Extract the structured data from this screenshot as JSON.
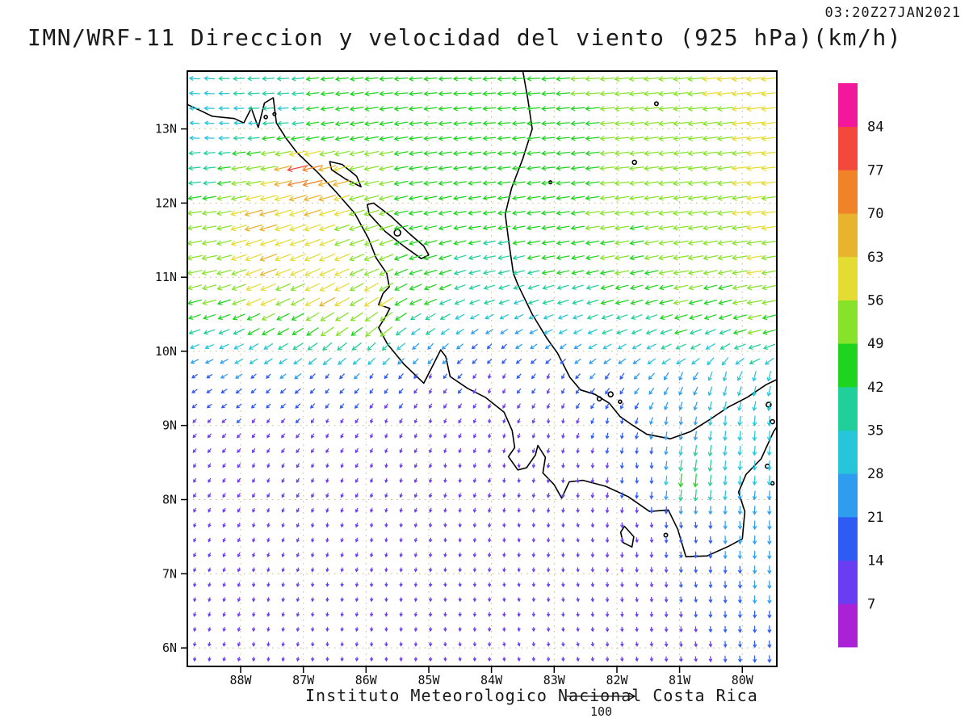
{
  "chart_data": {
    "type": "vector_field_map",
    "title": "IMN/WRF-11 Direccion y velocidad del viento (925 hPa)(km/h)",
    "timestamp": "03:20Z27JAN2021",
    "footer": "Instituto Meteorologico Nacional Costa Rica",
    "reference_vector_label": "100",
    "model": "IMN/WRF-11",
    "variable": "Direccion y velocidad del viento",
    "level": "925 hPa",
    "units": "km/h",
    "map": {
      "lon_min": -88.85,
      "lon_max": -79.45,
      "lat_min": 5.75,
      "lat_max": 13.78
    },
    "axes": {
      "lat_ticks": [
        {
          "label": "13N",
          "value": 13
        },
        {
          "label": "12N",
          "value": 12
        },
        {
          "label": "11N",
          "value": 11
        },
        {
          "label": "10N",
          "value": 10
        },
        {
          "label": "9N",
          "value": 9
        },
        {
          "label": "8N",
          "value": 8
        },
        {
          "label": "7N",
          "value": 7
        },
        {
          "label": "6N",
          "value": 6
        }
      ],
      "lon_ticks": [
        {
          "label": "88W",
          "value": -88
        },
        {
          "label": "87W",
          "value": -87
        },
        {
          "label": "86W",
          "value": -86
        },
        {
          "label": "85W",
          "value": -85
        },
        {
          "label": "84W",
          "value": -84
        },
        {
          "label": "83W",
          "value": -83
        },
        {
          "label": "82W",
          "value": -82
        },
        {
          "label": "81W",
          "value": -81
        },
        {
          "label": "80W",
          "value": -80
        }
      ]
    },
    "colorbar": {
      "levels": [
        7,
        14,
        21,
        28,
        35,
        42,
        49,
        56,
        63,
        70,
        77,
        84
      ],
      "colors": [
        "#a922d6",
        "#6b3df2",
        "#2f5bf5",
        "#2e9df0",
        "#26c5da",
        "#20cf9a",
        "#1fd41f",
        "#86e32a",
        "#e5dc33",
        "#e8b42e",
        "#f08228",
        "#f4483d",
        "#f2179b"
      ]
    },
    "style": {
      "background": "#ffffff",
      "grid_color": "#c9b87a",
      "coast_color": "#000000",
      "frame_color": "#000000"
    },
    "grid": {
      "cols": 40,
      "rows": 40,
      "arrow_scale": 0.3,
      "arrow_min": 4
    },
    "wind_samples": [
      [
        -88.6,
        13.6,
        34,
        176
      ],
      [
        -87.5,
        13.6,
        41,
        182
      ],
      [
        -86.5,
        13.6,
        45,
        186
      ],
      [
        -85.5,
        13.6,
        46,
        184
      ],
      [
        -84.5,
        13.6,
        44,
        183
      ],
      [
        -83.5,
        13.6,
        46,
        183
      ],
      [
        -82.5,
        13.6,
        50,
        184
      ],
      [
        -81.5,
        13.6,
        54,
        185
      ],
      [
        -80.5,
        13.6,
        57,
        186
      ],
      [
        -79.6,
        13.6,
        58,
        186
      ],
      [
        -88.6,
        13.0,
        29,
        176
      ],
      [
        -88.0,
        13.1,
        31,
        178
      ],
      [
        -87.3,
        13.2,
        34,
        183
      ],
      [
        -86.7,
        13.0,
        44,
        190
      ],
      [
        -86.0,
        13.0,
        48,
        190
      ],
      [
        -85.0,
        13.0,
        45,
        186
      ],
      [
        -84.0,
        13.0,
        43,
        184
      ],
      [
        -83.0,
        13.0,
        46,
        184
      ],
      [
        -82.0,
        13.0,
        50,
        185
      ],
      [
        -81.0,
        13.0,
        54,
        186
      ],
      [
        -79.8,
        13.0,
        58,
        186
      ],
      [
        -88.6,
        12.4,
        40,
        186
      ],
      [
        -87.8,
        12.4,
        55,
        189
      ],
      [
        -87.0,
        12.4,
        82,
        193
      ],
      [
        -86.5,
        12.3,
        68,
        195
      ],
      [
        -86.0,
        12.4,
        52,
        192
      ],
      [
        -85.0,
        12.4,
        46,
        188
      ],
      [
        -84.0,
        12.4,
        44,
        186
      ],
      [
        -83.0,
        12.4,
        47,
        186
      ],
      [
        -82.0,
        12.4,
        52,
        186
      ],
      [
        -81.0,
        12.4,
        56,
        187
      ],
      [
        -79.8,
        12.4,
        58,
        186
      ],
      [
        -88.6,
        11.8,
        50,
        189
      ],
      [
        -87.7,
        11.8,
        68,
        196
      ],
      [
        -86.9,
        11.8,
        64,
        198
      ],
      [
        -86.1,
        11.8,
        56,
        197
      ],
      [
        -85.2,
        11.8,
        48,
        191
      ],
      [
        -84.2,
        11.8,
        44,
        188
      ],
      [
        -83.2,
        11.8,
        47,
        188
      ],
      [
        -82.2,
        11.8,
        52,
        188
      ],
      [
        -81.0,
        11.8,
        56,
        188
      ],
      [
        -79.8,
        11.8,
        58,
        187
      ],
      [
        -88.6,
        11.2,
        55,
        191
      ],
      [
        -87.6,
        11.2,
        66,
        200
      ],
      [
        -86.7,
        11.2,
        62,
        203
      ],
      [
        -85.9,
        11.2,
        56,
        202
      ],
      [
        -85.0,
        11.2,
        47,
        195
      ],
      [
        -84.0,
        11.2,
        42,
        191
      ],
      [
        -83.0,
        11.2,
        46,
        190
      ],
      [
        -82.0,
        11.2,
        52,
        190
      ],
      [
        -81.0,
        11.2,
        56,
        189
      ],
      [
        -79.8,
        11.2,
        58,
        188
      ],
      [
        -88.6,
        10.7,
        50,
        195
      ],
      [
        -87.6,
        10.7,
        60,
        203
      ],
      [
        -86.6,
        10.7,
        64,
        208
      ],
      [
        -85.8,
        10.7,
        62,
        212
      ],
      [
        -85.0,
        10.7,
        46,
        202
      ],
      [
        -84.0,
        10.7,
        37,
        198
      ],
      [
        -83.0,
        10.7,
        40,
        196
      ],
      [
        -82.0,
        10.7,
        47,
        194
      ],
      [
        -81.0,
        10.7,
        52,
        192
      ],
      [
        -79.8,
        10.7,
        55,
        190
      ],
      [
        -88.6,
        10.3,
        40,
        199
      ],
      [
        -87.6,
        10.3,
        49,
        208
      ],
      [
        -86.6,
        10.3,
        56,
        214
      ],
      [
        -85.8,
        10.3,
        58,
        219
      ],
      [
        -85.0,
        10.3,
        36,
        216
      ],
      [
        -84.0,
        10.3,
        26,
        212
      ],
      [
        -83.0,
        10.3,
        30,
        206
      ],
      [
        -82.0,
        10.3,
        38,
        200
      ],
      [
        -81.0,
        10.3,
        45,
        196
      ],
      [
        -79.8,
        10.3,
        50,
        193
      ],
      [
        -88.6,
        10.0,
        27,
        205
      ],
      [
        -87.6,
        10.0,
        32,
        213
      ],
      [
        -86.6,
        10.0,
        38,
        221
      ],
      [
        -85.8,
        10.0,
        34,
        226
      ],
      [
        -85.0,
        10.0,
        22,
        229
      ],
      [
        -84.0,
        10.0,
        16,
        231
      ],
      [
        -83.0,
        10.0,
        20,
        221
      ],
      [
        -82.0,
        10.0,
        28,
        212
      ],
      [
        -81.0,
        10.0,
        36,
        205
      ],
      [
        -79.8,
        10.0,
        42,
        198
      ],
      [
        -88.6,
        9.6,
        16,
        216
      ],
      [
        -87.6,
        9.6,
        14,
        226
      ],
      [
        -86.6,
        9.6,
        13,
        236
      ],
      [
        -85.8,
        9.6,
        12,
        246
      ],
      [
        -85.0,
        9.6,
        10,
        256
      ],
      [
        -84.0,
        9.6,
        10,
        262
      ],
      [
        -83.0,
        9.6,
        13,
        256
      ],
      [
        -82.0,
        9.6,
        20,
        242
      ],
      [
        -81.0,
        9.6,
        27,
        252
      ],
      [
        -80.3,
        9.6,
        32,
        258
      ],
      [
        -79.7,
        9.6,
        35,
        262
      ],
      [
        -88.6,
        9.0,
        11,
        230
      ],
      [
        -87.6,
        9.0,
        10,
        240
      ],
      [
        -86.6,
        9.0,
        9,
        250
      ],
      [
        -85.8,
        9.0,
        9,
        258
      ],
      [
        -85.0,
        9.0,
        8,
        264
      ],
      [
        -84.0,
        9.0,
        8,
        270
      ],
      [
        -83.0,
        9.0,
        10,
        272
      ],
      [
        -82.0,
        9.0,
        15,
        266
      ],
      [
        -81.0,
        9.0,
        24,
        268
      ],
      [
        -80.3,
        9.0,
        30,
        268
      ],
      [
        -79.7,
        9.0,
        33,
        268
      ],
      [
        -88.6,
        8.4,
        9,
        245
      ],
      [
        -87.6,
        8.4,
        9,
        252
      ],
      [
        -86.6,
        8.4,
        8,
        258
      ],
      [
        -85.6,
        8.4,
        8,
        265
      ],
      [
        -84.6,
        8.4,
        8,
        272
      ],
      [
        -83.6,
        8.4,
        8,
        278
      ],
      [
        -82.6,
        8.4,
        10,
        280
      ],
      [
        -81.6,
        8.4,
        14,
        278
      ],
      [
        -80.85,
        8.25,
        48,
        266
      ],
      [
        -80.6,
        8.5,
        40,
        263
      ],
      [
        -80.1,
        8.4,
        28,
        269
      ],
      [
        -79.6,
        8.4,
        31,
        268
      ],
      [
        -88.6,
        7.6,
        8,
        252
      ],
      [
        -87.6,
        7.6,
        8,
        258
      ],
      [
        -86.6,
        7.6,
        8,
        264
      ],
      [
        -85.6,
        7.6,
        7,
        270
      ],
      [
        -84.6,
        7.6,
        7,
        276
      ],
      [
        -83.6,
        7.6,
        7,
        282
      ],
      [
        -82.6,
        7.6,
        8,
        285
      ],
      [
        -81.6,
        7.6,
        11,
        282
      ],
      [
        -80.8,
        7.6,
        16,
        278
      ],
      [
        -80.1,
        7.6,
        24,
        272
      ],
      [
        -79.6,
        7.6,
        28,
        270
      ],
      [
        -88.6,
        6.8,
        8,
        258
      ],
      [
        -87.6,
        6.8,
        8,
        263
      ],
      [
        -86.6,
        6.8,
        7,
        268
      ],
      [
        -85.6,
        6.8,
        7,
        273
      ],
      [
        -84.6,
        6.8,
        7,
        278
      ],
      [
        -83.6,
        6.8,
        7,
        283
      ],
      [
        -82.6,
        6.8,
        8,
        285
      ],
      [
        -81.6,
        6.8,
        10,
        282
      ],
      [
        -80.8,
        6.8,
        14,
        278
      ],
      [
        -80.1,
        6.8,
        20,
        274
      ],
      [
        -79.6,
        6.8,
        24,
        271
      ],
      [
        -88.6,
        6.0,
        8,
        262
      ],
      [
        -87.6,
        6.0,
        8,
        266
      ],
      [
        -86.6,
        6.0,
        7,
        270
      ],
      [
        -85.6,
        6.0,
        7,
        274
      ],
      [
        -84.6,
        6.0,
        7,
        279
      ],
      [
        -83.6,
        6.0,
        7,
        283
      ],
      [
        -82.6,
        6.0,
        8,
        284
      ],
      [
        -81.6,
        6.0,
        9,
        281
      ],
      [
        -80.8,
        6.0,
        12,
        278
      ],
      [
        -80.1,
        6.0,
        16,
        275
      ],
      [
        -79.6,
        6.0,
        20,
        272
      ]
    ],
    "coastlines": {
      "pacific": [
        [
          -88.85,
          13.33
        ],
        [
          -88.45,
          13.17
        ],
        [
          -88.1,
          13.14
        ],
        [
          -87.95,
          13.08
        ],
        [
          -87.83,
          13.28
        ],
        [
          -87.72,
          13.02
        ],
        [
          -87.62,
          13.35
        ],
        [
          -87.48,
          13.42
        ],
        [
          -87.43,
          13.08
        ],
        [
          -87.28,
          12.88
        ],
        [
          -87.1,
          12.68
        ],
        [
          -86.78,
          12.42
        ],
        [
          -86.48,
          12.15
        ],
        [
          -86.18,
          11.86
        ],
        [
          -85.96,
          11.52
        ],
        [
          -85.84,
          11.26
        ],
        [
          -85.67,
          11.05
        ],
        [
          -85.63,
          10.87
        ],
        [
          -85.73,
          10.78
        ],
        [
          -85.8,
          10.63
        ],
        [
          -85.62,
          10.58
        ],
        [
          -85.7,
          10.45
        ],
        [
          -85.8,
          10.32
        ],
        [
          -85.66,
          10.1
        ],
        [
          -85.4,
          9.83
        ],
        [
          -85.08,
          9.57
        ],
        [
          -84.94,
          9.8
        ],
        [
          -84.81,
          10.02
        ],
        [
          -84.73,
          9.93
        ],
        [
          -84.66,
          9.66
        ],
        [
          -84.38,
          9.5
        ],
        [
          -84.1,
          9.38
        ],
        [
          -83.8,
          9.18
        ],
        [
          -83.67,
          8.93
        ],
        [
          -83.63,
          8.7
        ],
        [
          -83.73,
          8.58
        ],
        [
          -83.58,
          8.4
        ],
        [
          -83.44,
          8.43
        ],
        [
          -83.3,
          8.6
        ],
        [
          -83.26,
          8.73
        ],
        [
          -83.14,
          8.57
        ],
        [
          -83.18,
          8.36
        ],
        [
          -83.0,
          8.2
        ],
        [
          -82.88,
          8.02
        ],
        [
          -82.76,
          8.24
        ],
        [
          -82.54,
          8.26
        ],
        [
          -82.18,
          8.18
        ],
        [
          -81.82,
          8.04
        ],
        [
          -81.48,
          7.84
        ],
        [
          -81.18,
          7.86
        ],
        [
          -81.03,
          7.6
        ],
        [
          -80.9,
          7.23
        ],
        [
          -80.56,
          7.24
        ],
        [
          -80.22,
          7.37
        ],
        [
          -80.0,
          7.47
        ],
        [
          -79.96,
          7.84
        ],
        [
          -80.06,
          8.1
        ],
        [
          -79.94,
          8.34
        ],
        [
          -79.7,
          8.55
        ],
        [
          -79.5,
          8.92
        ],
        [
          -79.45,
          8.98
        ]
      ],
      "caribbean": [
        [
          -83.5,
          13.78
        ],
        [
          -83.42,
          13.4
        ],
        [
          -83.35,
          13.0
        ],
        [
          -83.5,
          12.6
        ],
        [
          -83.68,
          12.2
        ],
        [
          -83.78,
          11.85
        ],
        [
          -83.72,
          11.45
        ],
        [
          -83.65,
          11.05
        ],
        [
          -83.58,
          10.9
        ],
        [
          -83.35,
          10.5
        ],
        [
          -83.12,
          10.18
        ],
        [
          -82.95,
          9.98
        ],
        [
          -82.75,
          9.65
        ],
        [
          -82.58,
          9.48
        ],
        [
          -82.35,
          9.42
        ],
        [
          -82.12,
          9.3
        ],
        [
          -81.95,
          9.12
        ],
        [
          -81.78,
          9.02
        ],
        [
          -81.52,
          8.88
        ],
        [
          -81.15,
          8.82
        ],
        [
          -80.82,
          8.92
        ],
        [
          -80.52,
          9.08
        ],
        [
          -80.22,
          9.25
        ],
        [
          -79.92,
          9.38
        ],
        [
          -79.62,
          9.55
        ],
        [
          -79.45,
          9.62
        ]
      ],
      "lake_nicaragua": [
        [
          -85.88,
          12.0
        ],
        [
          -85.6,
          11.82
        ],
        [
          -85.3,
          11.58
        ],
        [
          -85.08,
          11.42
        ],
        [
          -85.0,
          11.3
        ],
        [
          -85.12,
          11.25
        ],
        [
          -85.4,
          11.42
        ],
        [
          -85.7,
          11.62
        ],
        [
          -85.95,
          11.85
        ],
        [
          -85.98,
          11.98
        ]
      ],
      "lake_managua": [
        [
          -86.55,
          12.45
        ],
        [
          -86.32,
          12.32
        ],
        [
          -86.08,
          12.22
        ],
        [
          -86.15,
          12.36
        ],
        [
          -86.38,
          12.52
        ],
        [
          -86.58,
          12.56
        ]
      ],
      "coiba": [
        [
          -81.88,
          7.64
        ],
        [
          -81.73,
          7.5
        ],
        [
          -81.76,
          7.36
        ],
        [
          -81.9,
          7.42
        ],
        [
          -81.94,
          7.56
        ]
      ],
      "islands": [
        [
          -85.5,
          11.6,
          4
        ],
        [
          -82.1,
          9.42,
          3
        ],
        [
          -82.28,
          9.36,
          2.5
        ],
        [
          -81.95,
          9.32,
          2
        ],
        [
          -79.58,
          9.28,
          3
        ],
        [
          -79.52,
          9.05,
          2.5
        ],
        [
          -79.6,
          8.45,
          2.5
        ],
        [
          -79.52,
          8.22,
          2
        ],
        [
          -81.72,
          12.55,
          2.5
        ],
        [
          -81.37,
          13.34,
          2.2
        ],
        [
          -83.06,
          12.28,
          1.8
        ],
        [
          -87.6,
          13.16,
          2
        ],
        [
          -87.46,
          13.2,
          1.8
        ],
        [
          -81.22,
          7.52,
          2.2
        ]
      ]
    }
  }
}
